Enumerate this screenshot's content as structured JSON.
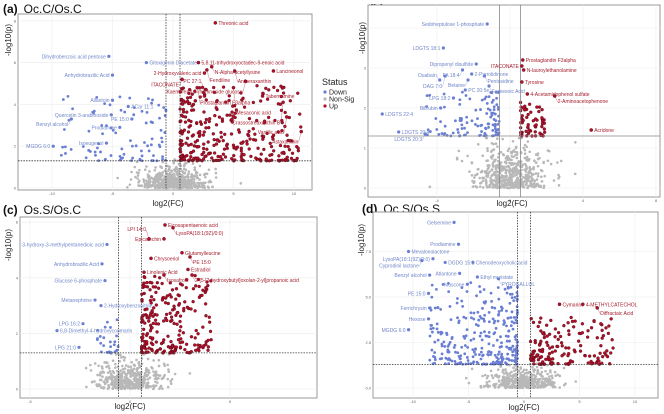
{
  "legend": {
    "title": "Status",
    "items": [
      {
        "label": "Down",
        "color": "#6a7fd4"
      },
      {
        "label": "Non-Sig",
        "color": "#b8b8b8"
      },
      {
        "label": "Up",
        "color": "#b0102a"
      }
    ]
  },
  "chart_data": [
    {
      "type": "scatter",
      "panel": "(a)",
      "title": "Oc.C/Os.C",
      "xlabel": "log2(FC)",
      "ylabel": "-log10(p)",
      "xlim": [
        -12,
        12
      ],
      "ylim": [
        0,
        8.3
      ],
      "xticks": [
        -10,
        -5,
        0,
        5,
        10
      ],
      "yticks": [
        0,
        2,
        4,
        6,
        8
      ],
      "thresholds": {
        "log2fc": 0.58,
        "neglog10p": 1.3,
        "line_style": "dotted"
      },
      "grid": true,
      "labeled_points": [
        {
          "label": "Threonic acid",
          "x": 3.5,
          "y": 7.9,
          "status": "Up"
        },
        {
          "label": "Dihydrobenzoic acid pentose",
          "x": -5.3,
          "y": 6.3,
          "status": "Down"
        },
        {
          "label": "5,8,11-trihydroxyoctadec-9-enoic acid",
          "x": 2.1,
          "y": 6.0,
          "status": "Up"
        },
        {
          "label": "N-Alpha-acetyllysine",
          "x": 3.2,
          "y": 5.8,
          "status": "Up"
        },
        {
          "label": "Gitoxigenin Diacetate",
          "x": -2.2,
          "y": 6.0,
          "status": "Down"
        },
        {
          "label": "Antheraxanthin",
          "x": 5.1,
          "y": 5.6,
          "status": "Up"
        },
        {
          "label": "Anhydrobrazilic Acid",
          "x": -5.0,
          "y": 5.4,
          "status": "Down"
        },
        {
          "label": "Lancineonol",
          "x": 8.3,
          "y": 5.6,
          "status": "Up"
        },
        {
          "label": "2-Hydroxyvaleric acid",
          "x": 2.6,
          "y": 5.5,
          "status": "Up"
        },
        {
          "label": "Fendiline",
          "x": 2.8,
          "y": 5.65,
          "status": "Up"
        },
        {
          "label": "ITACONATE",
          "x": 0.75,
          "y": 5.2,
          "status": "Up"
        },
        {
          "label": "Kaempferol 3-rhamnoside glucose",
          "x": 6.0,
          "y": 5.1,
          "status": "Up"
        },
        {
          "label": "Prostaglandin F3alpha",
          "x": 2.0,
          "y": 4.8,
          "status": "Up"
        },
        {
          "label": "Mesaconic acid",
          "x": 5.0,
          "y": 4.8,
          "status": "Up"
        },
        {
          "label": "PC 27:1",
          "x": 2.6,
          "y": 4.4,
          "status": "Up"
        },
        {
          "label": "Tabernamine",
          "x": 7.4,
          "y": 4.4,
          "status": "Up"
        },
        {
          "label": "Crassostreaxanthin B",
          "x": 9.1,
          "y": 4.1,
          "status": "Up"
        },
        {
          "label": "Vanillic acid",
          "x": 9.4,
          "y": 3.4,
          "status": "Up"
        },
        {
          "label": "Astaxanthin",
          "x": 10.6,
          "y": 2.7,
          "status": "Up"
        },
        {
          "label": "Allantoin",
          "x": -5.0,
          "y": 4.2,
          "status": "Down"
        },
        {
          "label": "ACar 11:1",
          "x": -3.7,
          "y": 3.9,
          "status": "Down"
        },
        {
          "label": "Quercetin 3-arabinoside",
          "x": -5.1,
          "y": 3.5,
          "status": "Down"
        },
        {
          "label": "PE 15:0",
          "x": -3.4,
          "y": 3.3,
          "status": "Down"
        },
        {
          "label": "Benzyl alcohol",
          "x": -8.4,
          "y": 3.3,
          "status": "Down"
        },
        {
          "label": "Prodiamine",
          "x": -4.4,
          "y": 2.9,
          "status": "Down"
        },
        {
          "label": "Isoeugenol",
          "x": -5.5,
          "y": 2.15,
          "status": "Down"
        },
        {
          "label": "MGDG 6:0",
          "x": -9.9,
          "y": 2.0,
          "status": "Down"
        }
      ]
    },
    {
      "type": "scatter",
      "panel": "(b)",
      "title": "Oc.S/Oc.C",
      "xlabel": "log2(FC)",
      "ylabel": "-log10(p)",
      "xlim": [
        -7.5,
        8.5
      ],
      "ylim": [
        0,
        4.5
      ],
      "xticks": [
        -4,
        0,
        4,
        8
      ],
      "yticks": [
        0,
        1,
        2,
        3,
        4
      ],
      "thresholds": {
        "log2fc": 0.58,
        "neglog10p": 1.3,
        "line_style": "solid"
      },
      "grid": true,
      "labeled_points": [
        {
          "label": "Sedoheptulose 1-phosphate",
          "x": -1.25,
          "y": 4.1,
          "status": "Down"
        },
        {
          "label": "LDGTS 18:1",
          "x": -3.65,
          "y": 3.5,
          "status": "Down"
        },
        {
          "label": "Dipropenyl disulfide",
          "x": -1.85,
          "y": 3.1,
          "status": "Down"
        },
        {
          "label": "FA 18:4",
          "x": -2.6,
          "y": 2.95,
          "status": "Down"
        },
        {
          "label": "2-Pyrrolidinone",
          "x": -2.1,
          "y": 2.85,
          "status": "Down"
        },
        {
          "label": "DAG 7:0",
          "x": -3.55,
          "y": 2.8,
          "status": "Down"
        },
        {
          "label": "Betaine",
          "x": -2.3,
          "y": 2.7,
          "status": "Down"
        },
        {
          "label": "Ouabain",
          "x": -3.85,
          "y": 2.7,
          "status": "Down"
        },
        {
          "label": "Pentosidine",
          "x": -1.4,
          "y": 2.8,
          "status": "Down"
        },
        {
          "label": "Farnesoic Acid",
          "x": -1.15,
          "y": 2.55,
          "status": "Down"
        },
        {
          "label": "PC 20:5e",
          "x": -2.45,
          "y": 2.45,
          "status": "Down"
        },
        {
          "label": "LPG 18:2",
          "x": -3.1,
          "y": 2.25,
          "status": "Down"
        },
        {
          "label": "Bilirubin",
          "x": -3.8,
          "y": 2.0,
          "status": "Down"
        },
        {
          "label": "LDGTS 22:4",
          "x": -7.0,
          "y": 1.85,
          "status": "Down"
        },
        {
          "label": "LDGTS 20:4",
          "x": -6.1,
          "y": 1.4,
          "status": "Down"
        },
        {
          "label": "LDGTS 20:3",
          "x": -4.65,
          "y": 1.35,
          "status": "Down"
        },
        {
          "label": "Prostaglandin F3alpha",
          "x": 0.7,
          "y": 3.2,
          "status": "Up"
        },
        {
          "label": "ITACONATE",
          "x": 0.65,
          "y": 3.05,
          "status": "Up"
        },
        {
          "label": "N-lauroylethanolamine",
          "x": 0.75,
          "y": 2.95,
          "status": "Up"
        },
        {
          "label": "Tyrosine",
          "x": 0.65,
          "y": 2.65,
          "status": "Up"
        },
        {
          "label": "4-Acetamidophenol sulfate",
          "x": 0.95,
          "y": 2.35,
          "status": "Up"
        },
        {
          "label": "2-Aminoacetophenone",
          "x": 2.45,
          "y": 2.3,
          "status": "Up"
        },
        {
          "label": "Acridone",
          "x": 4.45,
          "y": 1.45,
          "status": "Up"
        }
      ]
    },
    {
      "type": "scatter",
      "panel": "(c)",
      "title": "Os.S/Os.C",
      "xlabel": "log2(FC)",
      "ylabel": "-log10(p)",
      "xlim": [
        -5.5,
        9.4
      ],
      "ylim": [
        0,
        6.1
      ],
      "xticks": [
        -5,
        0,
        5
      ],
      "yticks": [
        0,
        2,
        4,
        6
      ],
      "thresholds": {
        "log2fc": 0.58,
        "neglog10p": 1.3,
        "line_style": "dotted"
      },
      "grid": true,
      "labeled_points": [
        {
          "label": "Eicosapentaenoic acid",
          "x": 1.75,
          "y": 5.9,
          "status": "Up"
        },
        {
          "label": "LysoPA(18:1(9Z)/0:0)",
          "x": 2.15,
          "y": 5.8,
          "status": "Up"
        },
        {
          "label": "Epicatechin",
          "x": 1.7,
          "y": 5.4,
          "status": "Up"
        },
        {
          "label": "LPI 14:0",
          "x": 0.95,
          "y": 5.4,
          "status": "Up"
        },
        {
          "label": "Glutamylleucine",
          "x": 2.6,
          "y": 4.9,
          "status": "Up"
        },
        {
          "label": "Chrysoeriol",
          "x": 1.05,
          "y": 4.7,
          "status": "Up"
        },
        {
          "label": "PE 15:0",
          "x": 3.0,
          "y": 4.75,
          "status": "Up"
        },
        {
          "label": "Linolenic Acid",
          "x": 0.7,
          "y": 4.2,
          "status": "Up"
        },
        {
          "label": "Estradiol",
          "x": 2.9,
          "y": 4.3,
          "status": "Up"
        },
        {
          "label": "Isosafrole",
          "x": 1.7,
          "y": 4.1,
          "status": "Up"
        },
        {
          "label": "2-[5-[2-hydroxybutyl]oxolan-2-yl]propanoic acid",
          "x": 3.1,
          "y": 4.1,
          "status": "Up"
        },
        {
          "label": "3-hydroxy-3-methylpentanedioic acid",
          "x": -1.15,
          "y": 5.2,
          "status": "Down"
        },
        {
          "label": "Anhydrobrazilic Acid",
          "x": -1.4,
          "y": 4.5,
          "status": "Down"
        },
        {
          "label": "Glucose 6-phosphate",
          "x": -1.25,
          "y": 3.9,
          "status": "Down"
        },
        {
          "label": "Metanephrine",
          "x": -1.75,
          "y": 3.2,
          "status": "Down"
        },
        {
          "label": "2-Hydroxybenzonitrile",
          "x": -1.45,
          "y": 3.0,
          "status": "Down"
        },
        {
          "label": "LPG 16:2",
          "x": -2.35,
          "y": 2.35,
          "status": "Down"
        },
        {
          "label": "6,8-Dimethyl-4-hydroxycoumarin",
          "x": -3.65,
          "y": 2.1,
          "status": "Down"
        },
        {
          "label": "LPG 21:0",
          "x": -2.55,
          "y": 1.5,
          "status": "Down"
        }
      ]
    },
    {
      "type": "scatter",
      "panel": "(d)",
      "title": "Oc.S/Os.S",
      "xlabel": "log2(FC)",
      "ylabel": "-log10(p)",
      "xlim": [
        -13.5,
        12
      ],
      "ylim": [
        0,
        9.7
      ],
      "xticks": [
        -10,
        -5,
        0,
        5,
        10
      ],
      "yticks": [
        "0.0",
        "2.5",
        "5.0",
        "7.5"
      ],
      "thresholds": {
        "log2fc": 0.58,
        "neglog10p": 1.3,
        "line_style": "dotted"
      },
      "grid": true,
      "labeled_points": [
        {
          "label": "Gelsemine",
          "x": -6.3,
          "y": 9.1,
          "status": "Down"
        },
        {
          "label": "Mevalonolactone",
          "x": -10.4,
          "y": 7.5,
          "status": "Down"
        },
        {
          "label": "Prodiamine",
          "x": -5.9,
          "y": 7.9,
          "status": "Down"
        },
        {
          "label": "LysoPA(18:1(9Z)/0:0)",
          "x": -8.2,
          "y": 7.1,
          "status": "Down"
        },
        {
          "label": "Chenodeoxycholic acid",
          "x": -4.6,
          "y": 6.9,
          "status": "Down"
        },
        {
          "label": "DGDG 15:1",
          "x": -7.1,
          "y": 6.9,
          "status": "Down"
        },
        {
          "label": "Cyprodinil lactone",
          "x": -9.2,
          "y": 7.0,
          "status": "Down"
        },
        {
          "label": "Benzyl alcohol",
          "x": -8.5,
          "y": 6.2,
          "status": "Down"
        },
        {
          "label": "Atlantone",
          "x": -5.8,
          "y": 6.3,
          "status": "Down"
        },
        {
          "label": "Ethyl myristate",
          "x": -4.2,
          "y": 6.1,
          "status": "Down"
        },
        {
          "label": "Muscone",
          "x": -5.1,
          "y": 5.7,
          "status": "Down"
        },
        {
          "label": "PYROGALLOL",
          "x": -2.3,
          "y": 6.0,
          "status": "Down"
        },
        {
          "label": "PE 15:0",
          "x": -8.6,
          "y": 5.2,
          "status": "Down"
        },
        {
          "label": "Ferrichrysin",
          "x": -8.5,
          "y": 4.4,
          "status": "Down"
        },
        {
          "label": "Hexose",
          "x": -8.6,
          "y": 3.8,
          "status": "Down"
        },
        {
          "label": "MGDG 6:0",
          "x": -10.4,
          "y": 3.2,
          "status": "Down"
        },
        {
          "label": "Cymarine",
          "x": 3.2,
          "y": 4.6,
          "status": "Up"
        },
        {
          "label": "4-METHYLCATECHOL",
          "x": 5.3,
          "y": 4.6,
          "status": "Up"
        },
        {
          "label": "Diffractaic Acid",
          "x": 6.6,
          "y": 4.4,
          "status": "Up"
        }
      ]
    }
  ]
}
